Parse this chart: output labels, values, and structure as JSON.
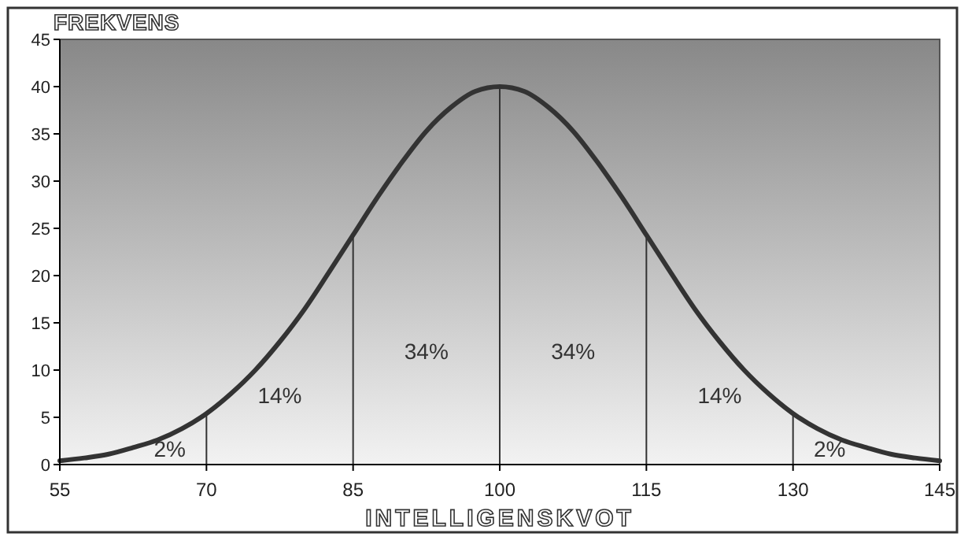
{
  "chart_data": {
    "type": "line",
    "xlabel": "INTELLIGENSKVOT",
    "ylabel": "FREKVENS",
    "x": [
      55,
      57.5,
      60,
      62.5,
      65,
      67.5,
      70,
      72.5,
      75,
      77.5,
      80,
      82.5,
      85,
      87.5,
      90,
      92.5,
      95,
      97.5,
      100,
      102.5,
      105,
      107.5,
      110,
      112.5,
      115,
      117.5,
      120,
      122.5,
      125,
      127.5,
      130,
      132.5,
      135,
      137.5,
      140,
      142.5,
      145
    ],
    "series": [
      {
        "color": "#333333",
        "values": [
          0.4,
          0.7,
          1.1,
          1.8,
          2.6,
          3.8,
          5.4,
          7.5,
          10,
          13,
          16.4,
          20.3,
          24.3,
          28.3,
          32,
          35.3,
          37.8,
          39.5,
          40,
          39.5,
          37.8,
          35.3,
          32,
          28.3,
          24.3,
          20.3,
          16.4,
          13,
          10,
          7.5,
          5.4,
          3.8,
          2.6,
          1.8,
          1.1,
          0.7,
          0.4
        ]
      }
    ],
    "xlim": [
      55,
      145
    ],
    "xticks": [
      55,
      70,
      85,
      100,
      115,
      130,
      145
    ],
    "ylim": [
      0,
      45
    ],
    "yticks": [
      0,
      5,
      10,
      15,
      20,
      25,
      30,
      35,
      40,
      45
    ],
    "grid": false,
    "marker": "none",
    "line_style": "solid",
    "ref_lines": [
      {
        "axis": "x",
        "value": 70,
        "color": "#333333"
      },
      {
        "axis": "x",
        "value": 85,
        "color": "#333333"
      },
      {
        "axis": "x",
        "value": 100,
        "color": "#333333"
      },
      {
        "axis": "x",
        "value": 115,
        "color": "#333333"
      },
      {
        "axis": "x",
        "value": 130,
        "color": "#333333"
      }
    ],
    "annotations": [
      "2%",
      "14%",
      "34%",
      "34%",
      "14%",
      "2%"
    ]
  }
}
